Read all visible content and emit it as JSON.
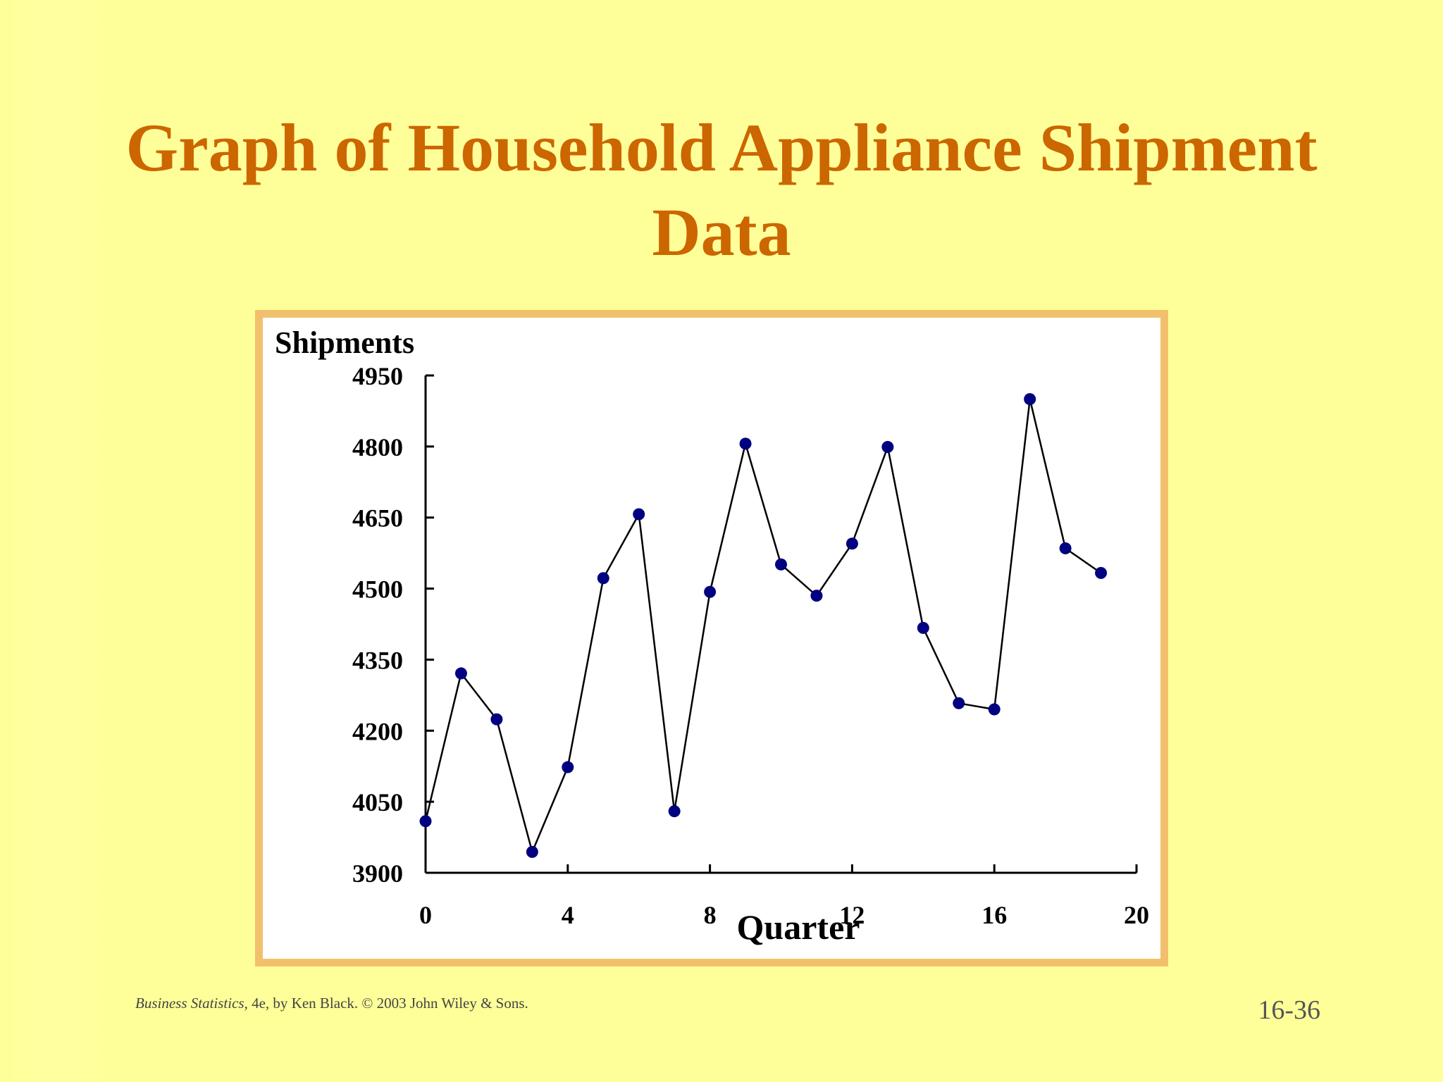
{
  "slide": {
    "title_line1": "Graph of Household Appliance Shipment",
    "title_line2": "Data",
    "footer_book": "Business Statistics,",
    "footer_rest": " 4e, by Ken Black. © 2003 John Wiley & Sons.",
    "slide_number": "16-36"
  },
  "colors": {
    "title": "#cc6600",
    "background": "#ffff99",
    "frame_border": "#f2c06c",
    "marker": "#000080",
    "line": "#000000"
  },
  "chart_data": {
    "type": "line",
    "title": "",
    "xlabel": "Quarter",
    "ylabel": "Shipments",
    "xlim": [
      0,
      20
    ],
    "ylim": [
      3900,
      4950
    ],
    "x_ticks": [
      0,
      4,
      8,
      12,
      16,
      20
    ],
    "y_ticks": [
      3900,
      4050,
      4200,
      4350,
      4500,
      4650,
      4800,
      4950
    ],
    "grid": false,
    "legend": "none",
    "series": [
      {
        "x": [
          0,
          1,
          2,
          3,
          4,
          5,
          6,
          7,
          8,
          9,
          10,
          11,
          12,
          13,
          14,
          15,
          16,
          17,
          18,
          19
        ],
        "values": [
          4009,
          4321,
          4224,
          3944,
          4123,
          4522,
          4657,
          4030,
          4493,
          4806,
          4551,
          4485,
          4595,
          4799,
          4417,
          4258,
          4245,
          4900,
          4585,
          4533
        ]
      }
    ]
  }
}
